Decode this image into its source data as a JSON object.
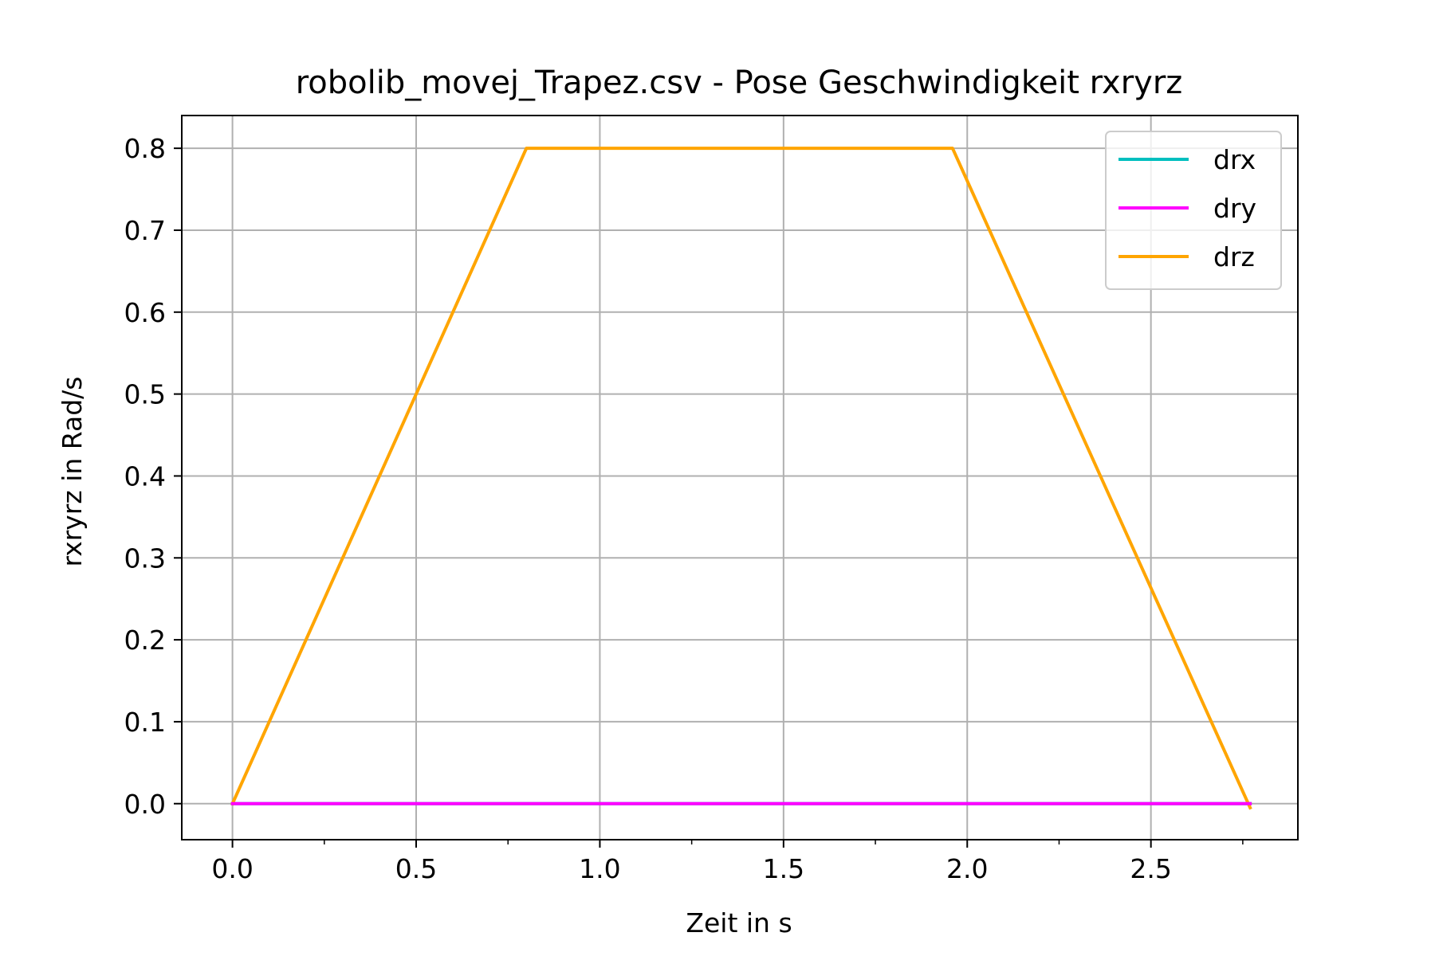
{
  "chart_data": {
    "type": "line",
    "title": "robolib_movej_Trapez.csv - Pose Geschwindigkeit rxryrz",
    "xlabel": "Zeit in s",
    "ylabel": "rxryrz in Rad/s",
    "xlim": [
      -0.138,
      2.9
    ],
    "ylim": [
      -0.044,
      0.84
    ],
    "xticks": [
      0.0,
      0.5,
      1.0,
      1.5,
      2.0,
      2.5
    ],
    "xtick_labels": [
      "0.0",
      "0.5",
      "1.0",
      "1.5",
      "2.0",
      "2.5"
    ],
    "xminor_ticks": [
      0.25,
      0.75,
      1.25,
      1.75,
      2.25,
      2.75
    ],
    "yticks": [
      0.0,
      0.1,
      0.2,
      0.3,
      0.4,
      0.5,
      0.6,
      0.7,
      0.8
    ],
    "ytick_labels": [
      "0.0",
      "0.1",
      "0.2",
      "0.3",
      "0.4",
      "0.5",
      "0.6",
      "0.7",
      "0.8"
    ],
    "grid": true,
    "legend_position": "top-right",
    "series": [
      {
        "name": "drx",
        "color": "#00bfbf",
        "x": [
          0.0,
          2.77
        ],
        "y": [
          0.0,
          0.0
        ]
      },
      {
        "name": "drz",
        "color": "#ffa500",
        "x": [
          0.0,
          0.8,
          1.96,
          2.77
        ],
        "y": [
          0.0,
          0.8,
          0.8,
          -0.005
        ]
      },
      {
        "name": "dry",
        "color": "#ff00ff",
        "x": [
          0.0,
          2.77
        ],
        "y": [
          0.0,
          0.0
        ]
      }
    ],
    "legend_order": [
      "drx",
      "dry",
      "drz"
    ]
  }
}
